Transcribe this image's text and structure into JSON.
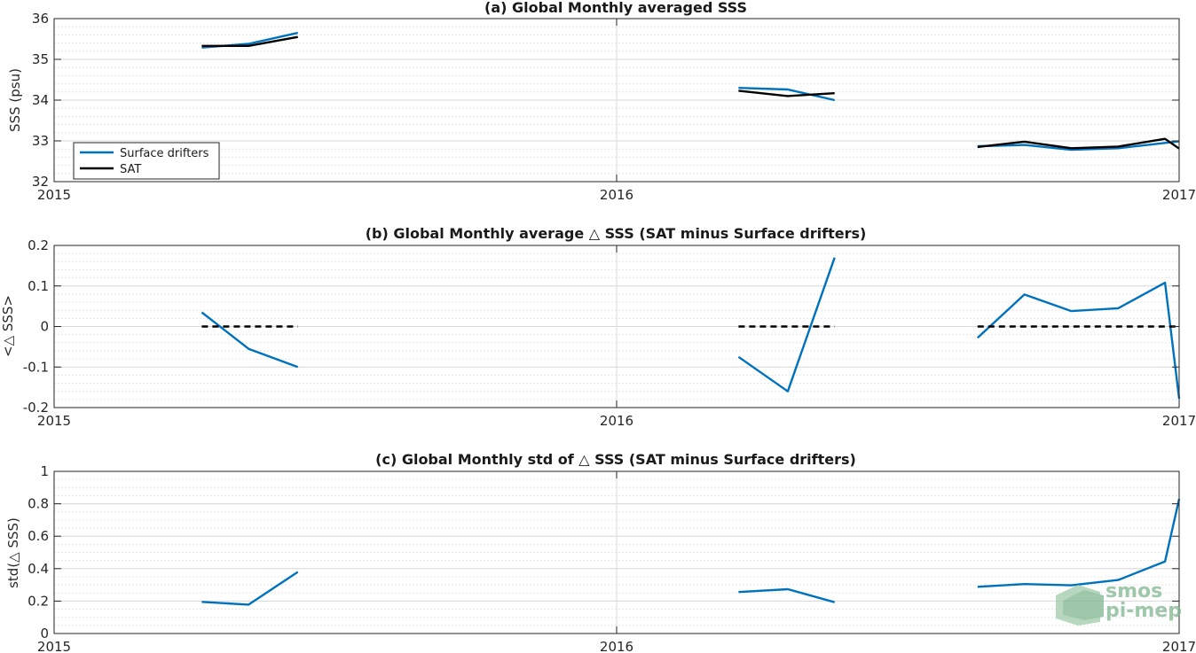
{
  "colors": {
    "drifters": "#0072bd",
    "sat": "#000000",
    "grid": "#dcdcdc",
    "axis": "#262626",
    "logo": "#7fb58d"
  },
  "logo": {
    "line1": "smos",
    "line2": "pi-mep"
  },
  "chart_data": [
    {
      "type": "line",
      "title": "(a) Global Monthly averaged SSS",
      "ylabel": "SSS (psu)",
      "xlim": [
        2015,
        2017
      ],
      "ylim": [
        32,
        36
      ],
      "xticks": [
        2015,
        2016,
        2017
      ],
      "xtick_labels": [
        "2015",
        "2016",
        "2017"
      ],
      "yticks": [
        32,
        33,
        34,
        35,
        36
      ],
      "ytick_labels": [
        "32",
        "33",
        "34",
        "35",
        "36"
      ],
      "minor_y_step": 0.2,
      "grid": true,
      "legend": {
        "position": "bottom-left",
        "entries": [
          "Surface drifters",
          "SAT"
        ]
      },
      "series": [
        {
          "name": "Surface drifters",
          "color": "#0072bd",
          "dash": false,
          "segments": [
            [
              [
                2015.2625,
                35.29
              ],
              [
                2015.3458,
                35.38
              ],
              [
                2015.4333,
                35.65
              ]
            ],
            [
              [
                2016.2167,
                34.3
              ],
              [
                2016.3042,
                34.26
              ],
              [
                2016.3875,
                34.0
              ]
            ],
            [
              [
                2016.6417,
                32.87
              ],
              [
                2016.725,
                32.9
              ],
              [
                2016.8083,
                32.78
              ],
              [
                2016.8917,
                32.82
              ],
              [
                2016.975,
                32.95
              ],
              [
                2017.0,
                32.99
              ]
            ]
          ]
        },
        {
          "name": "SAT",
          "color": "#000000",
          "dash": false,
          "segments": [
            [
              [
                2015.2625,
                35.33
              ],
              [
                2015.3458,
                35.33
              ],
              [
                2015.4333,
                35.55
              ]
            ],
            [
              [
                2016.2167,
                34.23
              ],
              [
                2016.3042,
                34.1
              ],
              [
                2016.3875,
                34.17
              ]
            ],
            [
              [
                2016.6417,
                32.85
              ],
              [
                2016.725,
                32.98
              ],
              [
                2016.8083,
                32.82
              ],
              [
                2016.8917,
                32.86
              ],
              [
                2016.975,
                33.05
              ],
              [
                2017.0,
                32.81
              ]
            ]
          ]
        }
      ]
    },
    {
      "type": "line",
      "title": "(b) Global Monthly average △ SSS (SAT minus Surface drifters)",
      "ylabel": "<△ SSS>",
      "xlim": [
        2015,
        2017
      ],
      "ylim": [
        -0.2,
        0.2
      ],
      "xticks": [
        2015,
        2016,
        2017
      ],
      "xtick_labels": [
        "2015",
        "2016",
        "2017"
      ],
      "yticks": [
        -0.2,
        -0.1,
        0,
        0.1,
        0.2
      ],
      "ytick_labels": [
        "-0.2",
        "-0.1",
        "0",
        "0.1",
        "0.2"
      ],
      "minor_y_step": 0.02,
      "grid": true,
      "series": [
        {
          "name": "",
          "color": "#0072bd",
          "dash": false,
          "segments": [
            [
              [
                2015.2625,
                0.035
              ],
              [
                2015.3458,
                -0.055
              ],
              [
                2015.4333,
                -0.1
              ]
            ],
            [
              [
                2016.2167,
                -0.075
              ],
              [
                2016.3042,
                -0.16
              ],
              [
                2016.3875,
                0.17
              ]
            ],
            [
              [
                2016.6417,
                -0.028
              ],
              [
                2016.725,
                0.079
              ],
              [
                2016.8083,
                0.038
              ],
              [
                2016.8917,
                0.045
              ],
              [
                2016.975,
                0.108
              ],
              [
                2017.0,
                -0.178
              ]
            ]
          ]
        },
        {
          "name": "",
          "color": "#000000",
          "dash": true,
          "segments": [
            [
              [
                2015.2625,
                0
              ],
              [
                2015.4333,
                0
              ]
            ],
            [
              [
                2016.2167,
                0
              ],
              [
                2016.3875,
                0
              ]
            ],
            [
              [
                2016.6417,
                0
              ],
              [
                2017.0,
                0
              ]
            ]
          ]
        }
      ]
    },
    {
      "type": "line",
      "title": "(c) Global Monthly std of △ SSS (SAT minus Surface drifters)",
      "ylabel": "std(△ SSS)",
      "xlim": [
        2015,
        2017
      ],
      "ylim": [
        0,
        1
      ],
      "xticks": [
        2015,
        2016,
        2017
      ],
      "xtick_labels": [
        "2015",
        "2016",
        "2017"
      ],
      "yticks": [
        0,
        0.2,
        0.4,
        0.6,
        0.8,
        1
      ],
      "ytick_labels": [
        "0",
        "0.2",
        "0.4",
        "0.6",
        "0.8",
        "1"
      ],
      "minor_y_step": 0.05,
      "grid": true,
      "series": [
        {
          "name": "",
          "color": "#0072bd",
          "dash": false,
          "segments": [
            [
              [
                2015.2625,
                0.195
              ],
              [
                2015.3458,
                0.178
              ],
              [
                2015.4333,
                0.38
              ]
            ],
            [
              [
                2016.2167,
                0.256
              ],
              [
                2016.3042,
                0.273
              ],
              [
                2016.3875,
                0.193
              ]
            ],
            [
              [
                2016.6417,
                0.288
              ],
              [
                2016.725,
                0.305
              ],
              [
                2016.8083,
                0.297
              ],
              [
                2016.8917,
                0.33
              ],
              [
                2016.975,
                0.444
              ],
              [
                2017.0,
                0.83
              ]
            ]
          ]
        }
      ]
    }
  ]
}
